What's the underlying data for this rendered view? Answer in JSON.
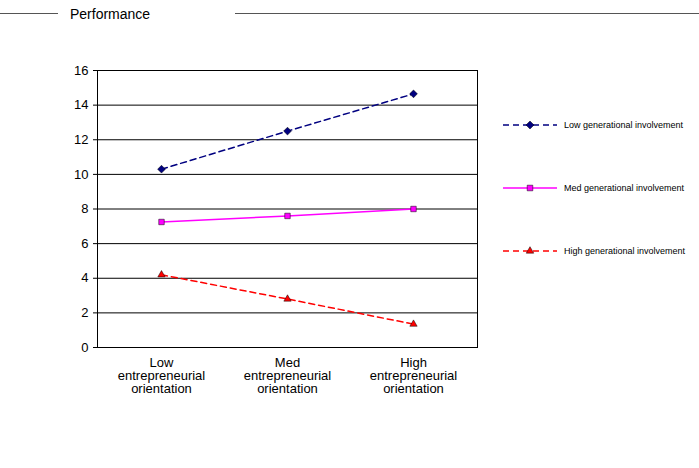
{
  "chart_data": {
    "type": "line",
    "title": "Performance",
    "categories": [
      "Low entrepreneurial orientation",
      "Med entrepreneurial orientation",
      "High entrepreneurial orientation"
    ],
    "series": [
      {
        "name": "Low generational involvement",
        "color": "#000080",
        "marker": "diamond",
        "line_style": "dashed",
        "values": [
          10.3,
          12.5,
          14.65
        ]
      },
      {
        "name": "Med generational involvement",
        "color": "#ff00ff",
        "marker": "square",
        "line_style": "solid",
        "values": [
          7.25,
          7.6,
          8.0
        ]
      },
      {
        "name": "High generational involvement",
        "color": "#ff0000",
        "marker": "triangle",
        "line_style": "dashed",
        "values": [
          4.2,
          2.8,
          1.35
        ]
      }
    ],
    "ylim": [
      0,
      16
    ],
    "yticks": [
      0,
      2,
      4,
      6,
      8,
      10,
      12,
      14,
      16
    ],
    "grid": true,
    "legend": "right"
  }
}
